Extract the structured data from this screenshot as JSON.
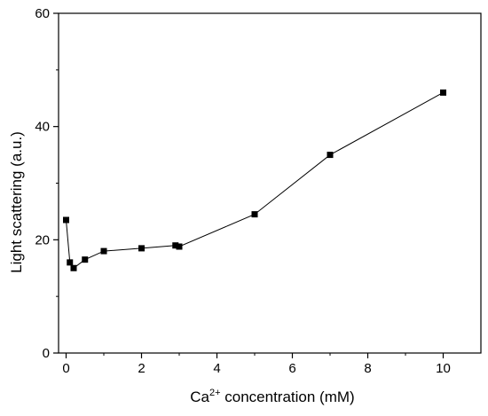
{
  "chart_data": {
    "type": "line",
    "xlabel_main": "Ca",
    "xlabel_sup": "2+",
    "xlabel_rest": " concentration (mM)",
    "ylabel": "Light scattering (a.u.)",
    "xlim": [
      -0.2,
      11.0
    ],
    "ylim": [
      0,
      60
    ],
    "xticks": [
      0,
      2,
      4,
      6,
      8,
      10
    ],
    "yticks": [
      0,
      20,
      40,
      60
    ],
    "grid": false,
    "series": [
      {
        "marker": "square",
        "color": "#000000",
        "x": [
          0,
          0.1,
          0.2,
          0.5,
          1,
          2,
          2.9,
          3,
          5,
          7,
          10
        ],
        "y": [
          23.5,
          16.0,
          15.0,
          16.5,
          18.0,
          18.5,
          19.0,
          18.8,
          24.5,
          35.0,
          46.0
        ]
      }
    ]
  }
}
